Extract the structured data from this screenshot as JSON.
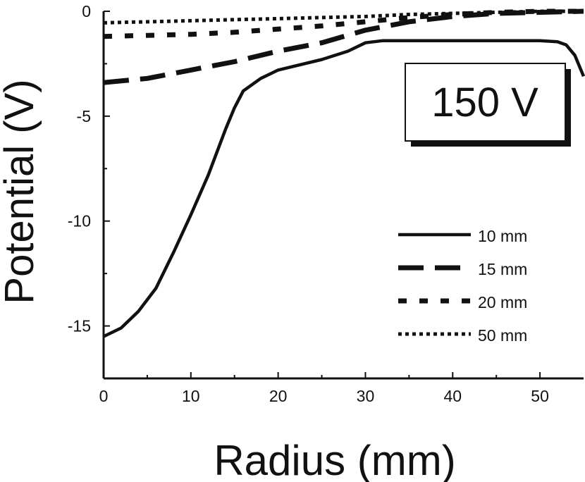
{
  "chart_data": {
    "type": "line",
    "title": "",
    "annotation": "150 V",
    "xlabel": "Radius (mm)",
    "ylabel": "Potential (V)",
    "xlim": [
      0,
      55
    ],
    "ylim": [
      -17.5,
      0
    ],
    "xticks": [
      0,
      10,
      20,
      30,
      40,
      50
    ],
    "yticks": [
      0,
      -5,
      -10,
      -15
    ],
    "grid": false,
    "legend_position": "bottom-right",
    "series": [
      {
        "name": "10 mm",
        "style": "solid",
        "x": [
          0,
          2,
          4,
          6,
          8,
          10,
          12,
          14,
          15,
          16,
          18,
          20,
          22,
          25,
          28,
          30,
          32,
          35,
          40,
          45,
          50,
          52,
          53,
          54,
          55
        ],
        "y": [
          -15.5,
          -15.1,
          -14.3,
          -13.2,
          -11.5,
          -9.7,
          -7.8,
          -5.6,
          -4.6,
          -3.8,
          -3.2,
          -2.8,
          -2.6,
          -2.3,
          -1.9,
          -1.5,
          -1.4,
          -1.4,
          -1.4,
          -1.4,
          -1.4,
          -1.45,
          -1.6,
          -2.1,
          -3.1
        ]
      },
      {
        "name": "15 mm",
        "style": "dashed",
        "x": [
          0,
          5,
          10,
          15,
          20,
          25,
          30,
          35,
          40,
          45,
          50,
          55
        ],
        "y": [
          -3.4,
          -3.2,
          -2.8,
          -2.4,
          -1.9,
          -1.5,
          -0.9,
          -0.5,
          -0.25,
          -0.1,
          -0.05,
          0
        ]
      },
      {
        "name": "20 mm",
        "style": "short-dash",
        "x": [
          0,
          5,
          10,
          15,
          20,
          25,
          30,
          35,
          40,
          45,
          50,
          55
        ],
        "y": [
          -1.2,
          -1.15,
          -1.1,
          -1.0,
          -0.85,
          -0.7,
          -0.5,
          -0.3,
          -0.15,
          -0.05,
          0,
          0
        ]
      },
      {
        "name": "50 mm",
        "style": "dotted",
        "x": [
          0,
          5,
          10,
          15,
          20,
          25,
          30,
          35,
          40,
          45,
          50,
          55
        ],
        "y": [
          -0.55,
          -0.5,
          -0.45,
          -0.4,
          -0.35,
          -0.3,
          -0.25,
          -0.15,
          -0.1,
          -0.05,
          0,
          0
        ]
      }
    ]
  }
}
